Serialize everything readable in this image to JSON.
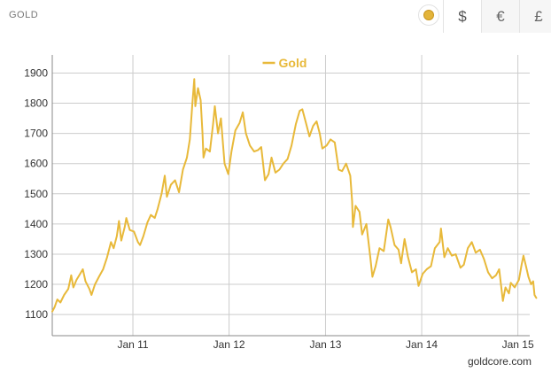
{
  "header": {
    "title": "GOLD"
  },
  "currency": {
    "options": [
      "$",
      "€",
      "£"
    ],
    "selected": "$"
  },
  "footer": {
    "credit": "goldcore.com"
  },
  "colors": {
    "series": "#e8b93a",
    "grid": "#cccccc",
    "axis": "#888888"
  },
  "chart_data": {
    "type": "line",
    "title": "",
    "xlabel": "",
    "ylabel": "",
    "legend": "top-center",
    "grid": true,
    "ylim": [
      1030,
      1960
    ],
    "xlim": [
      "2010-03-01",
      "2015-02-15"
    ],
    "yticks": [
      1100,
      1200,
      1300,
      1400,
      1500,
      1600,
      1700,
      1800,
      1900
    ],
    "xticks": [
      {
        "label": "Jan 11",
        "date": "2011-01-01"
      },
      {
        "label": "Jan 12",
        "date": "2012-01-01"
      },
      {
        "label": "Jan 13",
        "date": "2013-01-01"
      },
      {
        "label": "Jan 14",
        "date": "2014-01-01"
      },
      {
        "label": "Jan 15",
        "date": "2015-01-01"
      }
    ],
    "series": [
      {
        "name": "Gold",
        "points": [
          [
            "2010-03-01",
            1110
          ],
          [
            "2010-03-10",
            1125
          ],
          [
            "2010-03-20",
            1150
          ],
          [
            "2010-04-01",
            1140
          ],
          [
            "2010-04-15",
            1165
          ],
          [
            "2010-05-01",
            1185
          ],
          [
            "2010-05-12",
            1230
          ],
          [
            "2010-05-20",
            1190
          ],
          [
            "2010-06-01",
            1215
          ],
          [
            "2010-06-15",
            1235
          ],
          [
            "2010-06-25",
            1250
          ],
          [
            "2010-07-05",
            1210
          ],
          [
            "2010-07-20",
            1185
          ],
          [
            "2010-07-28",
            1165
          ],
          [
            "2010-08-10",
            1200
          ],
          [
            "2010-08-25",
            1225
          ],
          [
            "2010-09-10",
            1250
          ],
          [
            "2010-09-25",
            1290
          ],
          [
            "2010-10-10",
            1340
          ],
          [
            "2010-10-20",
            1320
          ],
          [
            "2010-11-01",
            1360
          ],
          [
            "2010-11-09",
            1410
          ],
          [
            "2010-11-18",
            1345
          ],
          [
            "2010-12-01",
            1390
          ],
          [
            "2010-12-07",
            1420
          ],
          [
            "2010-12-20",
            1380
          ],
          [
            "2011-01-05",
            1375
          ],
          [
            "2011-01-20",
            1340
          ],
          [
            "2011-01-28",
            1330
          ],
          [
            "2011-02-10",
            1360
          ],
          [
            "2011-02-25",
            1405
          ],
          [
            "2011-03-10",
            1430
          ],
          [
            "2011-03-25",
            1420
          ],
          [
            "2011-04-05",
            1450
          ],
          [
            "2011-04-20",
            1500
          ],
          [
            "2011-05-02",
            1560
          ],
          [
            "2011-05-10",
            1490
          ],
          [
            "2011-05-25",
            1530
          ],
          [
            "2011-06-10",
            1545
          ],
          [
            "2011-06-25",
            1505
          ],
          [
            "2011-07-10",
            1580
          ],
          [
            "2011-07-25",
            1620
          ],
          [
            "2011-08-05",
            1680
          ],
          [
            "2011-08-15",
            1800
          ],
          [
            "2011-08-22",
            1880
          ],
          [
            "2011-08-26",
            1790
          ],
          [
            "2011-09-05",
            1850
          ],
          [
            "2011-09-15",
            1810
          ],
          [
            "2011-09-22",
            1700
          ],
          [
            "2011-09-26",
            1620
          ],
          [
            "2011-10-05",
            1650
          ],
          [
            "2011-10-20",
            1640
          ],
          [
            "2011-11-01",
            1730
          ],
          [
            "2011-11-08",
            1790
          ],
          [
            "2011-11-20",
            1700
          ],
          [
            "2011-12-01",
            1750
          ],
          [
            "2011-12-15",
            1600
          ],
          [
            "2011-12-29",
            1565
          ],
          [
            "2012-01-10",
            1640
          ],
          [
            "2012-01-25",
            1710
          ],
          [
            "2012-02-10",
            1735
          ],
          [
            "2012-02-22",
            1770
          ],
          [
            "2012-03-05",
            1700
          ],
          [
            "2012-03-20",
            1660
          ],
          [
            "2012-04-05",
            1640
          ],
          [
            "2012-04-20",
            1645
          ],
          [
            "2012-05-02",
            1655
          ],
          [
            "2012-05-16",
            1545
          ],
          [
            "2012-05-30",
            1565
          ],
          [
            "2012-06-10",
            1620
          ],
          [
            "2012-06-25",
            1570
          ],
          [
            "2012-07-10",
            1580
          ],
          [
            "2012-07-25",
            1600
          ],
          [
            "2012-08-10",
            1615
          ],
          [
            "2012-08-25",
            1660
          ],
          [
            "2012-09-10",
            1730
          ],
          [
            "2012-09-25",
            1775
          ],
          [
            "2012-10-05",
            1780
          ],
          [
            "2012-10-20",
            1730
          ],
          [
            "2012-11-01",
            1690
          ],
          [
            "2012-11-15",
            1725
          ],
          [
            "2012-11-28",
            1740
          ],
          [
            "2012-12-10",
            1700
          ],
          [
            "2012-12-20",
            1650
          ],
          [
            "2013-01-05",
            1660
          ],
          [
            "2013-01-20",
            1680
          ],
          [
            "2013-02-05",
            1670
          ],
          [
            "2013-02-20",
            1580
          ],
          [
            "2013-03-05",
            1575
          ],
          [
            "2013-03-20",
            1600
          ],
          [
            "2013-04-05",
            1560
          ],
          [
            "2013-04-12",
            1475
          ],
          [
            "2013-04-15",
            1390
          ],
          [
            "2013-04-25",
            1460
          ],
          [
            "2013-05-10",
            1440
          ],
          [
            "2013-05-20",
            1365
          ],
          [
            "2013-06-05",
            1400
          ],
          [
            "2013-06-20",
            1290
          ],
          [
            "2013-06-28",
            1225
          ],
          [
            "2013-07-10",
            1260
          ],
          [
            "2013-07-25",
            1320
          ],
          [
            "2013-08-10",
            1310
          ],
          [
            "2013-08-27",
            1415
          ],
          [
            "2013-09-05",
            1390
          ],
          [
            "2013-09-20",
            1330
          ],
          [
            "2013-10-05",
            1315
          ],
          [
            "2013-10-15",
            1270
          ],
          [
            "2013-10-28",
            1350
          ],
          [
            "2013-11-10",
            1290
          ],
          [
            "2013-11-25",
            1240
          ],
          [
            "2013-12-10",
            1250
          ],
          [
            "2013-12-20",
            1195
          ],
          [
            "2014-01-05",
            1235
          ],
          [
            "2014-01-20",
            1250
          ],
          [
            "2014-02-05",
            1260
          ],
          [
            "2014-02-20",
            1320
          ],
          [
            "2014-03-10",
            1340
          ],
          [
            "2014-03-15",
            1385
          ],
          [
            "2014-03-28",
            1290
          ],
          [
            "2014-04-10",
            1320
          ],
          [
            "2014-04-25",
            1295
          ],
          [
            "2014-05-10",
            1300
          ],
          [
            "2014-05-28",
            1255
          ],
          [
            "2014-06-10",
            1265
          ],
          [
            "2014-06-25",
            1320
          ],
          [
            "2014-07-10",
            1340
          ],
          [
            "2014-07-25",
            1305
          ],
          [
            "2014-08-10",
            1315
          ],
          [
            "2014-08-25",
            1285
          ],
          [
            "2014-09-10",
            1240
          ],
          [
            "2014-09-25",
            1220
          ],
          [
            "2014-10-10",
            1230
          ],
          [
            "2014-10-22",
            1250
          ],
          [
            "2014-11-05",
            1145
          ],
          [
            "2014-11-15",
            1190
          ],
          [
            "2014-11-28",
            1170
          ],
          [
            "2014-12-05",
            1205
          ],
          [
            "2014-12-20",
            1190
          ],
          [
            "2015-01-05",
            1215
          ],
          [
            "2015-01-15",
            1265
          ],
          [
            "2015-01-22",
            1295
          ],
          [
            "2015-02-01",
            1260
          ],
          [
            "2015-02-10",
            1225
          ],
          [
            "2015-02-20",
            1200
          ],
          [
            "2015-02-28",
            1210
          ],
          [
            "2015-03-05",
            1165
          ],
          [
            "2015-03-12",
            1155
          ]
        ]
      }
    ]
  }
}
